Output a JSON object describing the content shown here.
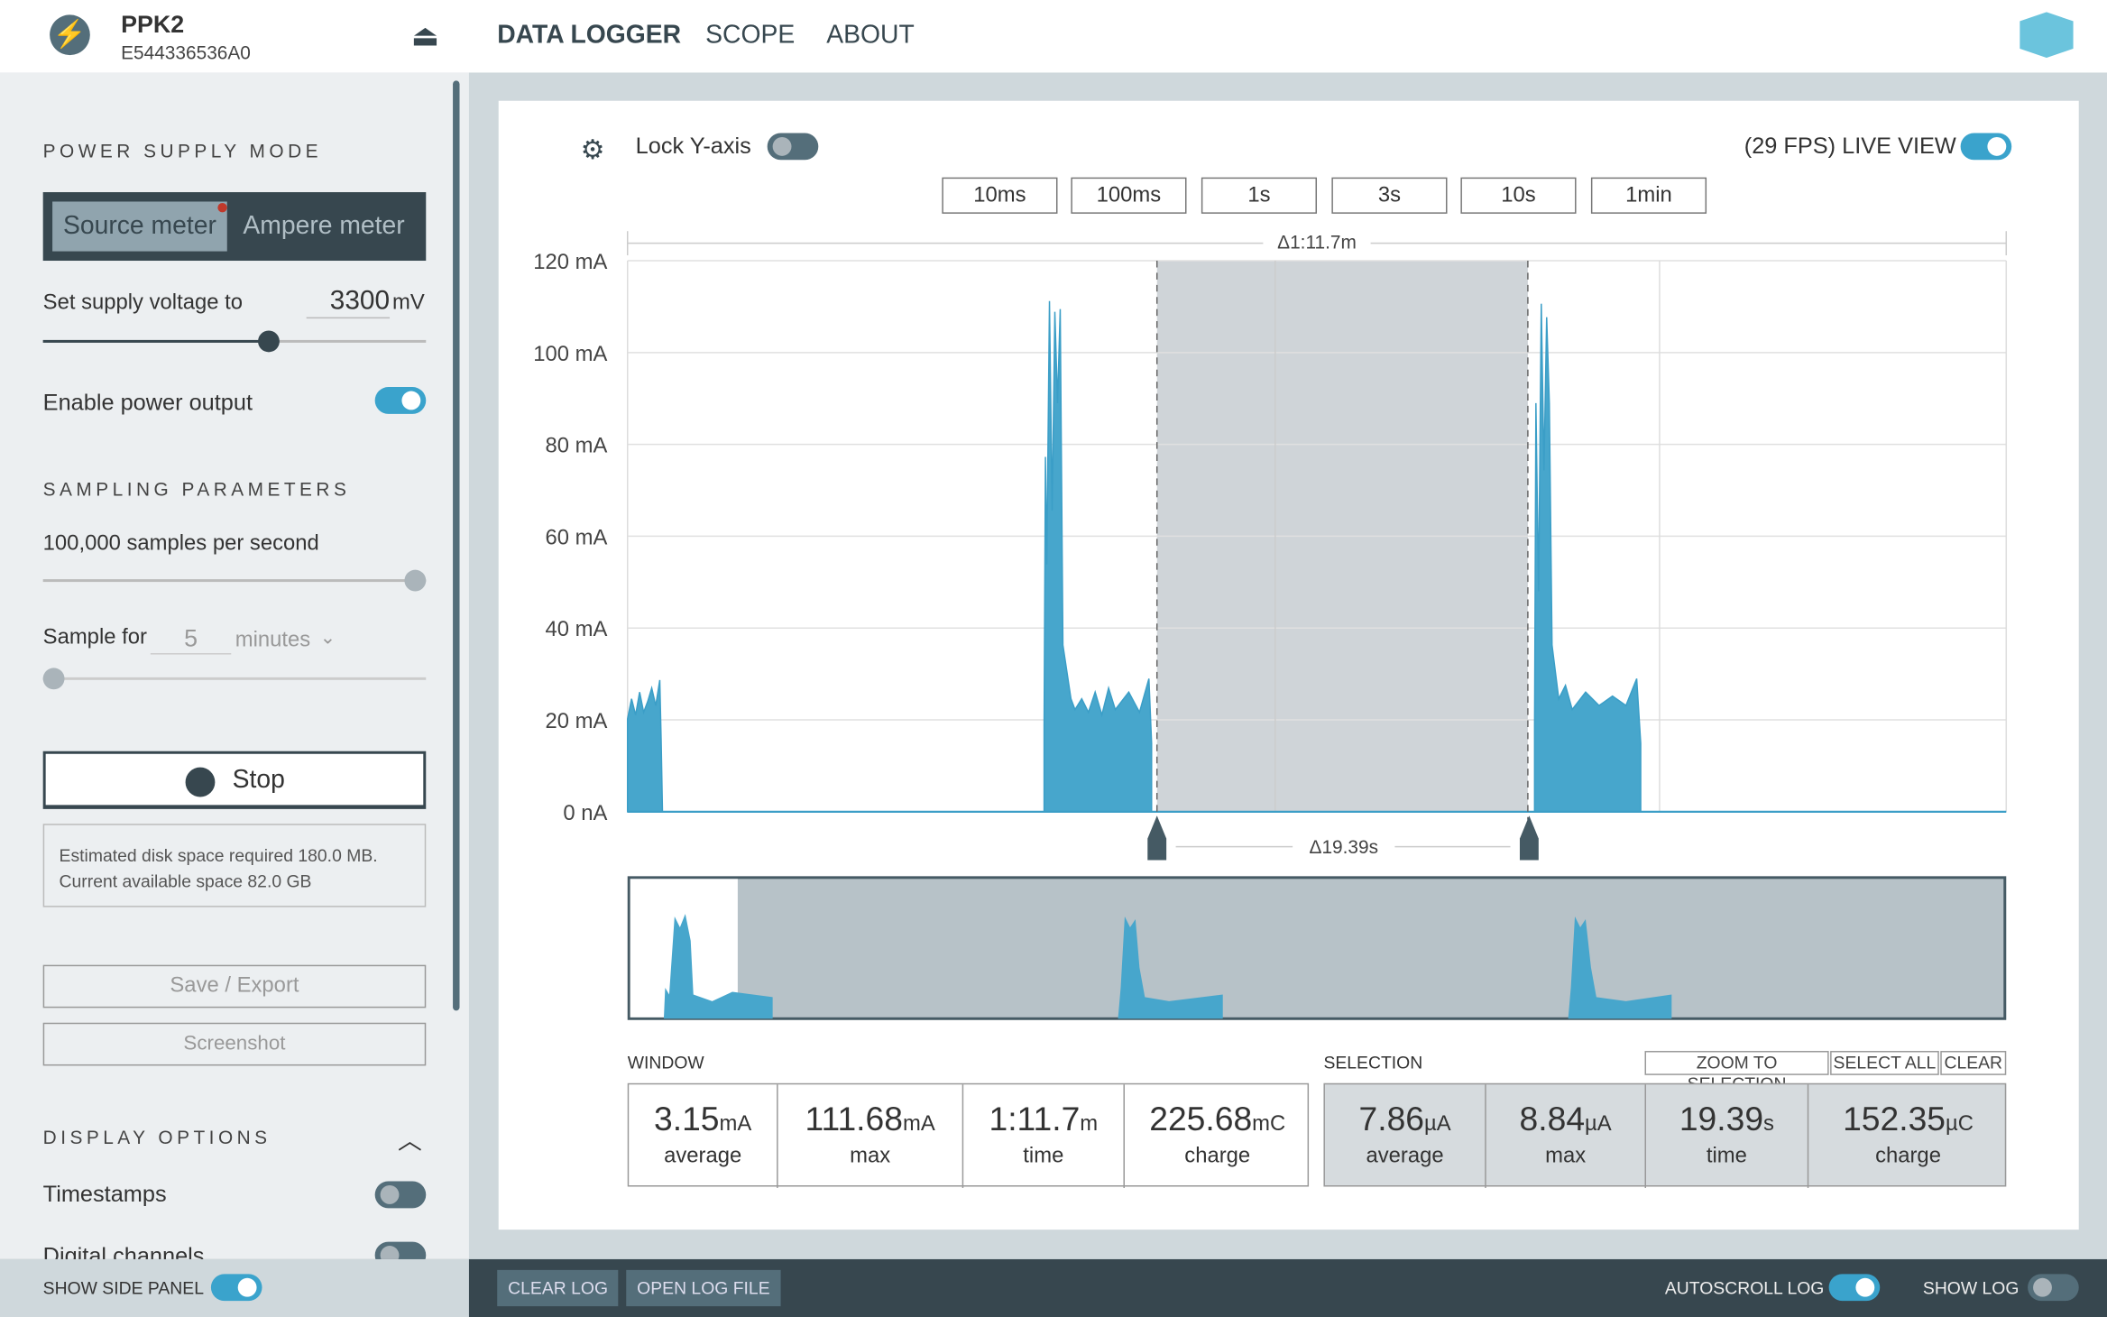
{
  "header": {
    "device": "PPK2",
    "serial": "E544336536A0",
    "nav": [
      "DATA LOGGER",
      "SCOPE",
      "ABOUT"
    ]
  },
  "side_panel": {
    "power_title": "POWER SUPPLY MODE",
    "modes": [
      "Source meter",
      "Ampere meter"
    ],
    "voltage_label": "Set supply voltage to",
    "voltage": "3300",
    "voltage_unit": "mV",
    "power_output": "Enable power output",
    "sampling_title": "SAMPLING PARAMETERS",
    "rate": "100,000 samples per second",
    "sample_for": "Sample for",
    "duration": "5",
    "duration_unit": "minutes",
    "stop": "Stop",
    "disk_info": [
      "Estimated disk space required 180.0 MB.",
      "Current available space 82.0 GB"
    ],
    "save": "Save / Export",
    "screenshot": "Screenshot",
    "display_title": "DISPLAY OPTIONS",
    "timestamps": "Timestamps",
    "digital": "Digital channels"
  },
  "toolbar": {
    "lock": "Lock Y-axis",
    "live": "(29 FPS) LIVE VIEW",
    "windows": [
      "10ms",
      "100ms",
      "1s",
      "3s",
      "10s",
      "1min"
    ]
  },
  "chart_data": {
    "type": "line",
    "ylim": [
      0,
      120
    ],
    "yticks": [
      {
        "value": 0,
        "label": "0 nA"
      },
      {
        "value": 20,
        "label": "20 mA"
      },
      {
        "value": 40,
        "label": "40 mA"
      },
      {
        "value": 60,
        "label": "60 mA"
      },
      {
        "value": 80,
        "label": "80 mA"
      },
      {
        "value": 100,
        "label": "100 mA"
      },
      {
        "value": 120,
        "label": "120 mA"
      }
    ],
    "grid": true,
    "window_delta": "Δ1:11.7m",
    "selection_delta": "Δ19.39s"
  },
  "window_stats": {
    "title": "WINDOW",
    "items": [
      {
        "value": "3.15",
        "unit": "mA",
        "label": "average"
      },
      {
        "value": "111.68",
        "unit": "mA",
        "label": "max"
      },
      {
        "value": "1:11.7",
        "unit": "m",
        "label": "time"
      },
      {
        "value": "225.68",
        "unit": "mC",
        "label": "charge"
      }
    ]
  },
  "selection_stats": {
    "title": "SELECTION",
    "actions": [
      "ZOOM TO SELECTION",
      "SELECT ALL",
      "CLEAR"
    ],
    "items": [
      {
        "value": "7.86",
        "unit": "µA",
        "label": "average"
      },
      {
        "value": "8.84",
        "unit": "µA",
        "label": "max"
      },
      {
        "value": "19.39",
        "unit": "s",
        "label": "time"
      },
      {
        "value": "152.35",
        "unit": "µC",
        "label": "charge"
      }
    ]
  },
  "footer": {
    "side_panel": "SHOW SIDE PANEL",
    "clear_log": "CLEAR LOG",
    "open_log": "OPEN LOG FILE",
    "autoscroll": "AUTOSCROLL LOG",
    "show_log": "SHOW LOG"
  }
}
